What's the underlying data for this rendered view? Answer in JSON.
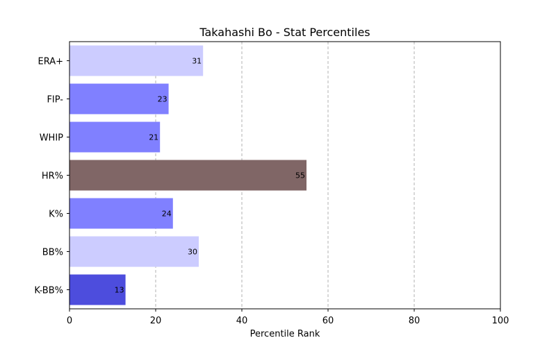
{
  "chart_data": {
    "type": "bar",
    "orientation": "horizontal",
    "title": "Takahashi Bo - Stat Percentiles",
    "xlabel": "Percentile Rank",
    "ylabel": "",
    "xlim": [
      0,
      100
    ],
    "xticks": [
      0,
      20,
      40,
      60,
      80,
      100
    ],
    "grid": "x-dashed",
    "categories": [
      "ERA+",
      "FIP-",
      "WHIP",
      "HR%",
      "K%",
      "BB%",
      "K-BB%"
    ],
    "values": [
      31,
      23,
      21,
      55,
      24,
      30,
      13
    ],
    "colors": [
      "#ccccff",
      "#8080ff",
      "#8080ff",
      "#806666",
      "#8080ff",
      "#ccccff",
      "#4d4ddd"
    ]
  }
}
